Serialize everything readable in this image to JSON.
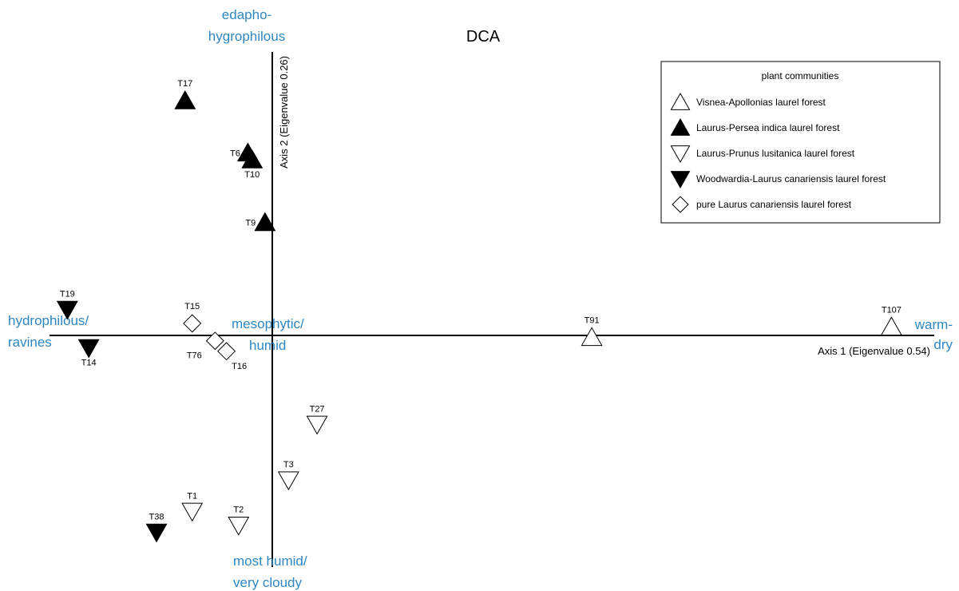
{
  "chart_data": {
    "type": "scatter",
    "title": "DCA",
    "xlabel": "Axis 1 (Eigenvalue 0.54)",
    "ylabel": "Axis 2 (Eigenvalue 0.26)",
    "text_color": "#2e86c1",
    "gradient_labels": {
      "top": [
        "edapho-",
        "hygrophilous"
      ],
      "left": [
        "hydrophilous/",
        "ravines"
      ],
      "center": [
        "mesophytic/",
        "humid"
      ],
      "right": [
        "warm-",
        "dry"
      ],
      "bottom": [
        "most humid/",
        "very cloudy"
      ]
    },
    "legend": {
      "title": "plant communities",
      "entries": [
        {
          "key": "visnea",
          "marker": "triangle-up-open",
          "label": "Visnea-Apollonias laurel forest"
        },
        {
          "key": "persea",
          "marker": "triangle-up-filled",
          "label": "Laurus-Persea indica laurel forest"
        },
        {
          "key": "prunus",
          "marker": "triangle-down-open",
          "label": "Laurus-Prunus lusitanica laurel forest"
        },
        {
          "key": "woodwardia",
          "marker": "triangle-down-filled",
          "label": "Woodwardia-Laurus canariensis laurel forest"
        },
        {
          "key": "pure",
          "marker": "diamond-open",
          "label": "pure Laurus canariensis laurel forest"
        }
      ]
    },
    "points": [
      {
        "id": "T17",
        "group": "persea",
        "x": -1.3,
        "y": 3.5
      },
      {
        "id": "T6",
        "group": "persea",
        "x": -0.42,
        "y": 2.75
      },
      {
        "id": "T10",
        "group": "persea",
        "x": -0.36,
        "y": 2.65
      },
      {
        "id": "T9",
        "group": "persea",
        "x": -0.18,
        "y": 1.75
      },
      {
        "id": "T19",
        "group": "woodwardia",
        "x": -2.95,
        "y": 0.5
      },
      {
        "id": "T14",
        "group": "woodwardia",
        "x": -2.65,
        "y": -0.05
      },
      {
        "id": "T38",
        "group": "woodwardia",
        "x": -1.7,
        "y": -2.7
      },
      {
        "id": "T15",
        "group": "pure",
        "x": -1.2,
        "y": 0.3
      },
      {
        "id": "T76",
        "group": "pure",
        "x": -0.88,
        "y": 0.05
      },
      {
        "id": "T16",
        "group": "pure",
        "x": -0.72,
        "y": -0.1
      },
      {
        "id": "T91",
        "group": "visnea",
        "x": 4.4,
        "y": 0.1
      },
      {
        "id": "T107",
        "group": "visnea",
        "x": 8.6,
        "y": 0.25
      },
      {
        "id": "T27",
        "group": "prunus",
        "x": 0.55,
        "y": -1.15
      },
      {
        "id": "T3",
        "group": "prunus",
        "x": 0.15,
        "y": -1.95
      },
      {
        "id": "T1",
        "group": "prunus",
        "x": -1.2,
        "y": -2.4
      },
      {
        "id": "T2",
        "group": "prunus",
        "x": -0.55,
        "y": -2.6
      }
    ],
    "xlim": [
      -3.2,
      9.2
    ],
    "ylim": [
      -3.2,
      4.2
    ],
    "grid": false,
    "legend_position": "top-right"
  }
}
